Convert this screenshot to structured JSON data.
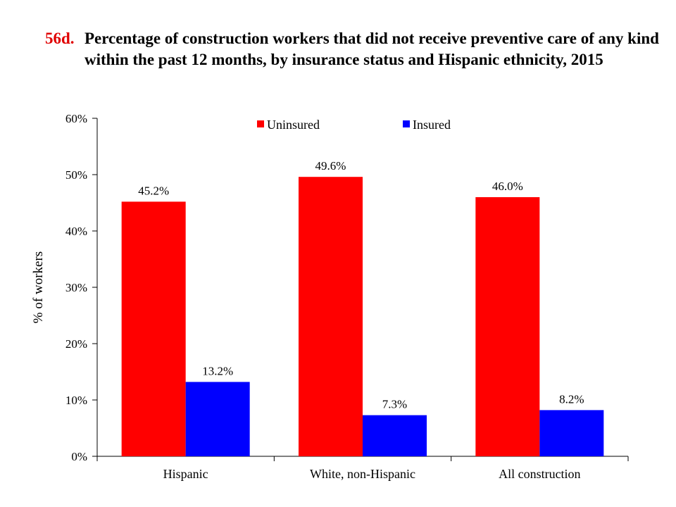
{
  "title": {
    "number": "56d.",
    "text": "Percentage of construction workers that did not receive preventive care of any kind within the past 12 months, by insurance status and Hispanic ethnicity, 2015"
  },
  "chart_data": {
    "type": "bar",
    "categories": [
      "Hispanic",
      "White, non-Hispanic",
      "All construction"
    ],
    "series": [
      {
        "name": "Uninsured",
        "values": [
          45.2,
          49.6,
          46.0
        ],
        "labels": [
          "45.2%",
          "49.6%",
          "46.0%"
        ],
        "color": "#ff0000"
      },
      {
        "name": "Insured",
        "values": [
          13.2,
          7.3,
          8.2
        ],
        "labels": [
          "13.2%",
          "7.3%",
          "8.2%"
        ],
        "color": "#0000ff"
      }
    ],
    "xlabel": "",
    "ylabel": "% of workers",
    "ylim": [
      0,
      60
    ],
    "yticks": [
      "0%",
      "10%",
      "20%",
      "30%",
      "40%",
      "50%",
      "60%"
    ],
    "grid": false,
    "legend_position": "top"
  }
}
